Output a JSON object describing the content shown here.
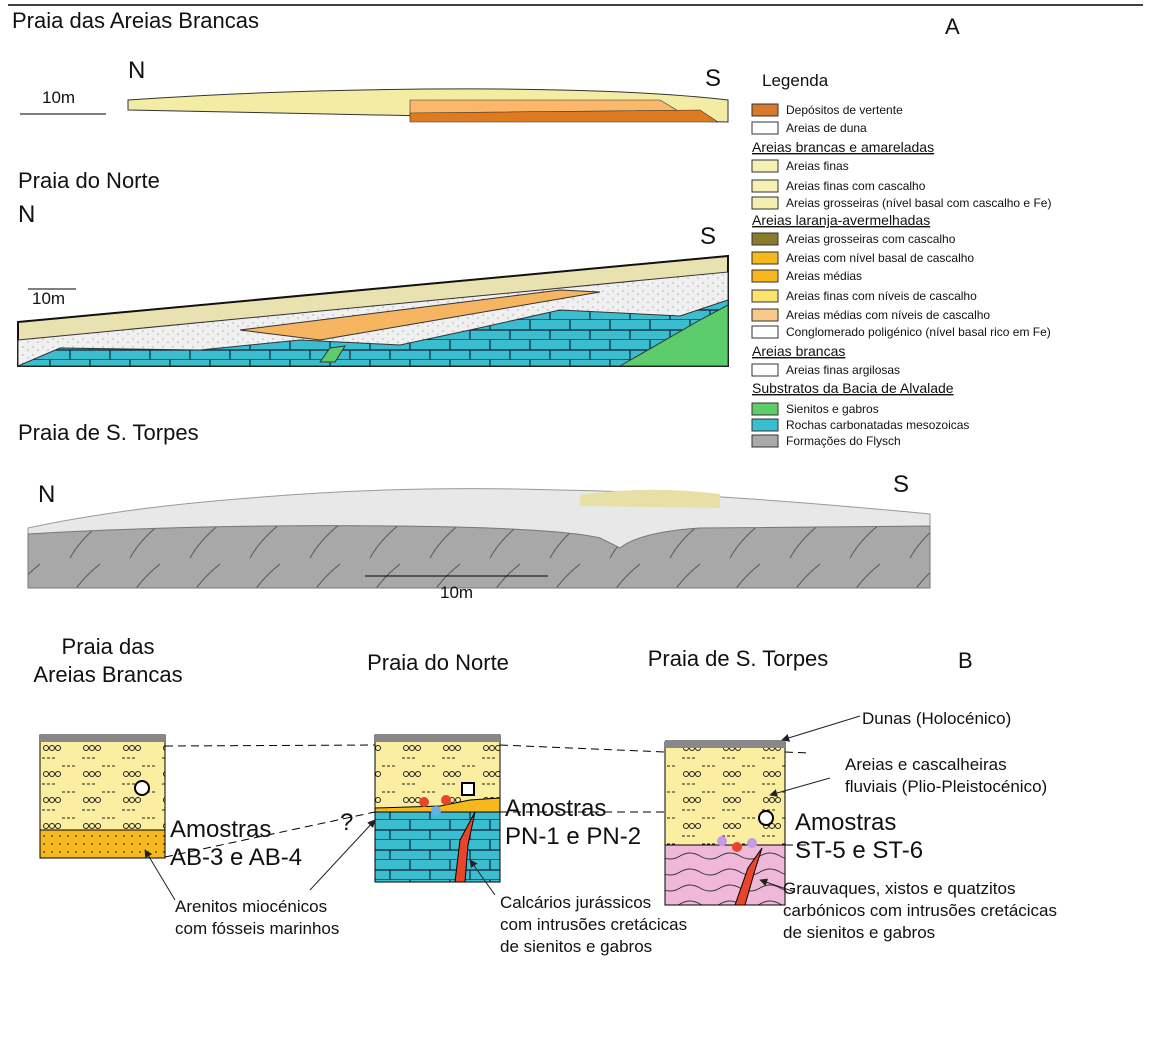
{
  "panel_a": {
    "label": "A",
    "sections": [
      {
        "title": "Praia das Areias Brancas",
        "north": "N",
        "south": "S",
        "scale": "10m"
      },
      {
        "title": "Praia do Norte",
        "north": "N",
        "south": "S",
        "scale": "10m"
      },
      {
        "title": "Praia de S. Torpes",
        "north": "N",
        "south": "S",
        "scale": "10m"
      }
    ]
  },
  "legend": {
    "title": "Legenda",
    "items": [
      {
        "text": "Depósitos de vertente"
      },
      {
        "text": "Areias de duna"
      },
      {
        "heading": "Areias brancas e amareladas"
      },
      {
        "text": "Areias finas"
      },
      {
        "text": "Areias finas com cascalho"
      },
      {
        "text": "Areias grosseiras (nível basal com cascalho e Fe)"
      },
      {
        "heading": "Areias laranja-avermelhadas"
      },
      {
        "text": "Areias grosseiras com cascalho"
      },
      {
        "text": "Areias com nível basal de cascalho"
      },
      {
        "text": "Areias médias"
      },
      {
        "text": "Areias finas com níveis de cascalho"
      },
      {
        "text": "Areias médias com níveis de cascalho"
      },
      {
        "text": "Conglomerado poligénico (nível basal rico em Fe)"
      },
      {
        "heading": "Areias brancas"
      },
      {
        "text": "Areias finas argilosas"
      },
      {
        "heading": "Substratos da Bacia de Alvalade"
      },
      {
        "text": "Sienitos e gabros"
      },
      {
        "text": "Rochas carbonatadas mesozoicas"
      },
      {
        "text": "Formações do Flysch"
      }
    ]
  },
  "panel_b": {
    "label": "B",
    "columns": [
      {
        "title": [
          "Praia das",
          "Areias Brancas"
        ],
        "samples": [
          "Amostras",
          "AB-3 e AB-4"
        ]
      },
      {
        "title": [
          "Praia do Norte"
        ],
        "samples": [
          "Amostras",
          "PN-1 e PN-2"
        ]
      },
      {
        "title": [
          "Praia de S. Torpes"
        ],
        "samples": [
          "Amostras",
          "ST-5 e ST-6"
        ]
      }
    ],
    "annotations": {
      "dunes": [
        "Dunas (Holocénico)"
      ],
      "fluvial": [
        "Areias e cascalheiras",
        "fluviais (Plio-Pleistocénico)"
      ],
      "graywacke": [
        "Grauvaques, xistos e quatzitos",
        "carbónicos com intrusões cretácicas",
        "de sienitos e gabros"
      ],
      "miocene": [
        "Arenitos miocénicos",
        "com fósseis marinhos"
      ],
      "uncertain": "?",
      "jurassic": [
        "Calcários jurássicos",
        "com intrusões cretácicas",
        "de sienitos e gabros"
      ]
    }
  }
}
